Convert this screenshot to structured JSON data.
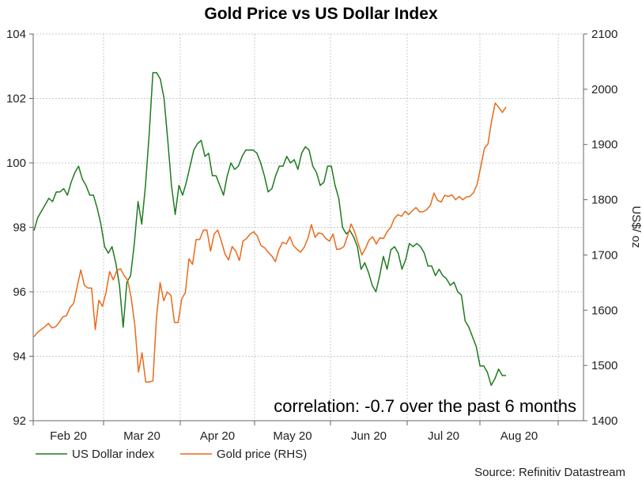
{
  "chart_data": {
    "type": "line",
    "title": "Gold Price vs US Dollar Index",
    "ylabel_right": "US$/ oz",
    "annotation": "correlation: -0.7 over the past 6 months",
    "source": "Source: Refinitiv Datastream",
    "grid": true,
    "legend_position": "bottom-left",
    "x_ticks": [
      "Feb 20",
      "Mar 20",
      "Apr 20",
      "May 20",
      "Jun 20",
      "Jul 20",
      "Aug 20"
    ],
    "y_left": {
      "ticks": [
        "104",
        "102",
        "100",
        "98",
        "96",
        "94",
        "92"
      ],
      "ylim": [
        92,
        104
      ]
    },
    "y_right": {
      "ticks": [
        "2100",
        "2000",
        "1900",
        "1800",
        "1700",
        "1600",
        "1500",
        "1400"
      ],
      "ylim": [
        1400,
        2100
      ]
    },
    "series": [
      {
        "name": "US Dollar index",
        "axis": "left",
        "color": "#1e7b1e",
        "values": [
          97.9,
          98.3,
          98.5,
          98.7,
          98.9,
          98.8,
          99.1,
          99.1,
          99.2,
          99.0,
          99.4,
          99.7,
          99.9,
          99.5,
          99.3,
          99.0,
          99.0,
          98.6,
          98.1,
          97.4,
          97.2,
          97.4,
          96.9,
          96.2,
          94.9,
          96.3,
          96.5,
          97.5,
          98.8,
          98.1,
          99.3,
          100.9,
          102.8,
          102.8,
          102.6,
          102.0,
          100.7,
          99.3,
          98.4,
          99.3,
          99.0,
          99.4,
          99.9,
          100.4,
          100.6,
          100.7,
          100.2,
          100.3,
          99.6,
          99.6,
          99.3,
          99.0,
          99.6,
          100.0,
          99.8,
          99.9,
          100.2,
          100.4,
          100.4,
          100.4,
          100.3,
          100.0,
          99.6,
          99.1,
          99.2,
          99.6,
          99.9,
          99.9,
          100.2,
          100.0,
          100.1,
          99.8,
          100.3,
          100.5,
          100.4,
          99.9,
          99.7,
          99.3,
          99.4,
          99.9,
          99.9,
          99.3,
          98.9,
          98.0,
          97.8,
          97.9,
          97.7,
          97.4,
          96.7,
          96.9,
          96.6,
          96.2,
          96.0,
          96.5,
          97.1,
          96.7,
          97.3,
          97.4,
          97.2,
          96.7,
          97.0,
          97.5,
          97.4,
          97.5,
          97.4,
          97.2,
          96.8,
          96.8,
          96.5,
          96.7,
          96.5,
          96.4,
          96.2,
          96.3,
          96.0,
          95.9,
          95.1,
          94.9,
          94.6,
          94.3,
          93.7,
          93.7,
          93.5,
          93.1,
          93.3,
          93.6,
          93.4,
          93.4
        ]
      },
      {
        "name": "Gold price (RHS)",
        "axis": "right",
        "color": "#ea6a1a",
        "values": [
          1552,
          1560,
          1565,
          1570,
          1576,
          1568,
          1570,
          1578,
          1588,
          1590,
          1605,
          1612,
          1643,
          1673,
          1645,
          1640,
          1640,
          1565,
          1618,
          1607,
          1632,
          1670,
          1655,
          1672,
          1675,
          1663,
          1654,
          1622,
          1572,
          1488,
          1523,
          1470,
          1470,
          1472,
          1587,
          1650,
          1617,
          1633,
          1627,
          1578,
          1578,
          1620,
          1632,
          1693,
          1683,
          1728,
          1728,
          1745,
          1745,
          1707,
          1738,
          1745,
          1725,
          1702,
          1691,
          1715,
          1707,
          1690,
          1725,
          1730,
          1738,
          1742,
          1734,
          1717,
          1713,
          1705,
          1698,
          1688,
          1710,
          1723,
          1720,
          1733,
          1717,
          1710,
          1705,
          1714,
          1730,
          1755,
          1732,
          1740,
          1738,
          1730,
          1725,
          1738,
          1710,
          1711,
          1715,
          1734,
          1756,
          1742,
          1720,
          1700,
          1712,
          1727,
          1733,
          1720,
          1731,
          1730,
          1742,
          1750,
          1766,
          1773,
          1770,
          1779,
          1773,
          1780,
          1786,
          1778,
          1778,
          1782,
          1790,
          1812,
          1799,
          1796,
          1808,
          1806,
          1809,
          1800,
          1806,
          1800,
          1805,
          1806,
          1813,
          1828,
          1860,
          1893,
          1901,
          1943,
          1975,
          1967,
          1958,
          1968
        ]
      }
    ],
    "legend": [
      {
        "label": "US Dollar index",
        "color": "#1e7b1e"
      },
      {
        "label": "Gold price (RHS)",
        "color": "#ea6a1a"
      }
    ]
  }
}
